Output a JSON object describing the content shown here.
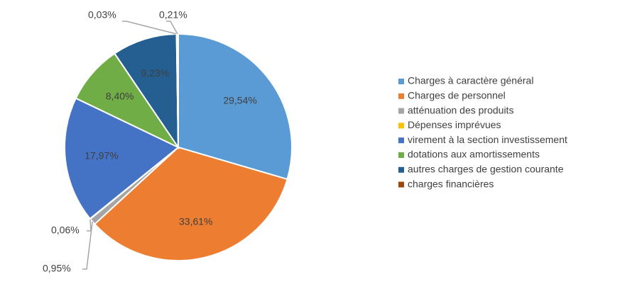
{
  "chart_data": {
    "type": "pie",
    "categories": [
      "Charges à caractère général",
      "Charges de personnel",
      "atténuation des produits",
      "Dépenses imprévues",
      "virement à la section investissement",
      "dotations aux amortissements",
      "autres charges de gestion courante",
      "charges financières",
      null
    ],
    "values": [
      29.54,
      33.61,
      0.95,
      0.06,
      17.97,
      8.4,
      9.23,
      0.03,
      0.21
    ],
    "value_labels": [
      "29,54%",
      "33,61%",
      "0,95%",
      "0,06%",
      "17,97%",
      "8,40%",
      "9,23%",
      "0,03%",
      "0,21%"
    ],
    "colors": [
      "#5b9bd5",
      "#ed7d31",
      "#a5a5a5",
      "#ffc000",
      "#4472c4",
      "#70ad47",
      "#255e91",
      "#9e480e",
      "#636363"
    ],
    "legend": "right"
  }
}
